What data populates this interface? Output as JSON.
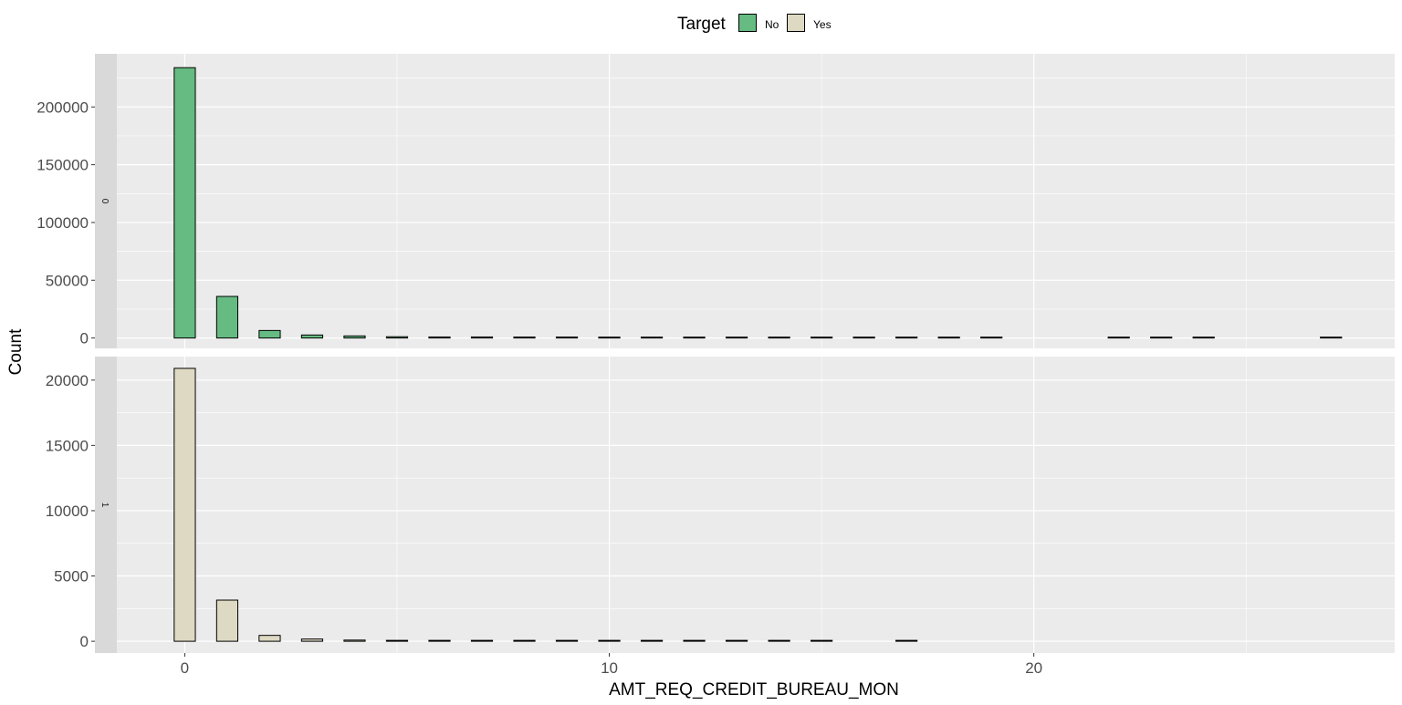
{
  "legend": {
    "title": "Target",
    "items": [
      {
        "label": "No",
        "color": "#66bb82"
      },
      {
        "label": "Yes",
        "color": "#ded9c3"
      }
    ]
  },
  "chart_data": {
    "type": "bar",
    "xlabel": "AMT_REQ_CREDIT_BUREAU_MON",
    "ylabel": "Count",
    "xlim": [
      -1.6,
      28.5
    ],
    "x_ticks": [
      0,
      10,
      20
    ],
    "grid": true,
    "legend_position": "top",
    "panels": [
      {
        "strip": "0",
        "fill": "#66bb82",
        "ylim": [
          -9000,
          246000
        ],
        "y_ticks": [
          0,
          50000,
          100000,
          150000,
          200000
        ],
        "x": [
          0,
          1,
          2,
          3,
          4,
          5,
          6,
          7,
          8,
          9,
          10,
          11,
          12,
          13,
          14,
          15,
          16,
          17,
          18,
          19,
          22,
          23,
          24,
          27
        ],
        "values": [
          234000,
          36000,
          6500,
          2600,
          1800,
          1100,
          900,
          900,
          850,
          850,
          750,
          750,
          180,
          110,
          90,
          80,
          60,
          55,
          45,
          40,
          10,
          10,
          10,
          10
        ]
      },
      {
        "strip": "1",
        "fill": "#ded9c3",
        "ylim": [
          -900,
          21800
        ],
        "y_ticks": [
          0,
          5000,
          10000,
          15000,
          20000
        ],
        "x": [
          0,
          1,
          2,
          3,
          4,
          5,
          6,
          7,
          8,
          9,
          10,
          11,
          12,
          13,
          14,
          15,
          17
        ],
        "values": [
          20900,
          3150,
          450,
          170,
          90,
          40,
          30,
          25,
          20,
          20,
          15,
          15,
          10,
          10,
          10,
          10,
          5
        ]
      }
    ]
  }
}
